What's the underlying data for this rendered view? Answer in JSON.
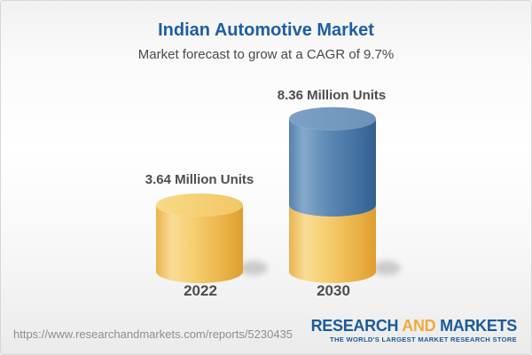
{
  "header": {
    "title": "Indian Automotive Market",
    "subtitle": "Market forecast to grow at a CAGR of 9.7%"
  },
  "chart_data": {
    "type": "bar",
    "style": "3d-cylinder",
    "title": "Indian Automotive Market",
    "subtitle": "Market forecast to grow at a CAGR of 9.7%",
    "cagr": "9.7%",
    "unit": "Million Units",
    "categories": [
      "2022",
      "2030"
    ],
    "values": [
      3.64,
      8.36
    ],
    "bars": [
      {
        "category": "2022",
        "value": 3.64,
        "value_label": "3.64 Million Units",
        "segments": [
          {
            "value": 3.64,
            "color": "gold"
          }
        ]
      },
      {
        "category": "2030",
        "value": 8.36,
        "value_label": "8.36 Million Units",
        "segments": [
          {
            "value": 3.64,
            "color": "gold"
          },
          {
            "value": 4.72,
            "color": "blue"
          }
        ]
      }
    ],
    "colors": {
      "gold": "#f2c564",
      "blue": "#4a79a8",
      "label_text": "#4d4d4d",
      "title_text": "#1d5fa3"
    }
  },
  "footer": {
    "url": "https://www.researchandmarkets.com/reports/5230435",
    "logo": {
      "word1": "RESEARCH",
      "word2": "AND",
      "word3": "MARKETS",
      "tagline": "THE WORLD'S LARGEST MARKET RESEARCH STORE"
    }
  }
}
